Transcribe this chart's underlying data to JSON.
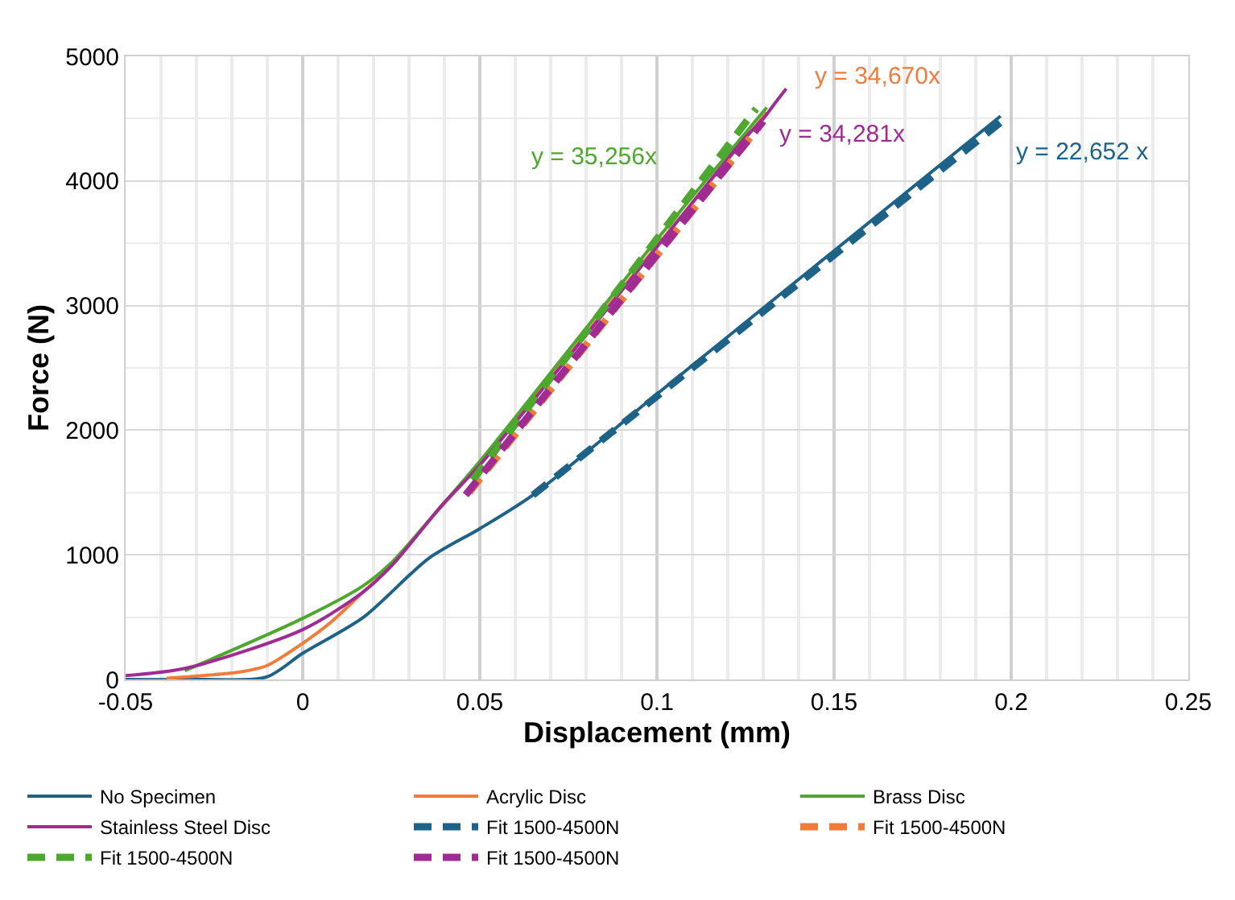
{
  "chart_data": {
    "type": "line",
    "xlabel": "Displacement (mm)",
    "ylabel": "Force (N)",
    "xlim": [
      -0.05,
      0.25
    ],
    "ylim": [
      0,
      5000
    ],
    "xticks": [
      -0.05,
      0,
      0.05,
      0.1,
      0.15,
      0.2,
      0.25
    ],
    "yticks": [
      0,
      1000,
      2000,
      3000,
      4000,
      5000
    ],
    "grid": true,
    "legend": "bottom",
    "marker": "none",
    "line_style": "solid",
    "series": [
      {
        "name": "No Specimen",
        "color": "#1f6287",
        "x": [
          -0.05,
          -0.03,
          -0.0102,
          0,
          0.0172,
          0.0355,
          0.05,
          0.065,
          0.1,
          0.15,
          0.197
        ],
        "values": [
          0,
          0,
          20,
          210,
          500,
          970,
          1210,
          1480,
          2290,
          3440,
          4520
        ]
      },
      {
        "name": "Acrylic Disc",
        "color": "#f07b3a",
        "x": [
          -0.0384,
          -0.0178,
          -0.0102,
          0,
          0.008,
          0.017,
          0.025,
          0.0355,
          0.05,
          0.1,
          0.131
        ],
        "values": [
          10,
          60,
          110,
          290,
          460,
          700,
          910,
          1270,
          1730,
          3480,
          4550
        ]
      },
      {
        "name": "Brass Disc",
        "color": "#4ea72e",
        "x": [
          -0.0333,
          0,
          0.017,
          0.0248,
          0.04,
          0.05,
          0.1,
          0.131
        ],
        "values": [
          70,
          490,
          750,
          930,
          1420,
          1750,
          3530,
          4590
        ]
      },
      {
        "name": "Stainless Steel Disc",
        "color": "#a02b93",
        "x": [
          -0.05,
          -0.033,
          0,
          0.017,
          0.025,
          0.04,
          0.05,
          0.1,
          0.125,
          0.13,
          0.134,
          0.1365
        ],
        "values": [
          30,
          90,
          400,
          700,
          910,
          1420,
          1720,
          3470,
          4350,
          4500,
          4650,
          4740
        ]
      },
      {
        "name": "Fit 1500-4500N",
        "color": "#1f6287",
        "line_style": "dashed",
        "x": [
          0.065,
          0.197
        ],
        "values": [
          1480,
          4470
        ]
      },
      {
        "name": "Fit 1500-4500N",
        "color": "#f07b3a",
        "line_style": "dashed",
        "x": [
          0.047,
          0.13
        ],
        "values": [
          1500,
          4480
        ]
      },
      {
        "name": "Fit 1500-4500N",
        "color": "#4ea72e",
        "line_style": "dashed",
        "x": [
          0.048,
          0.128
        ],
        "values": [
          1600,
          4580
        ]
      },
      {
        "name": "Fit 1500-4500N",
        "color": "#a02b93",
        "line_style": "dashed",
        "x": [
          0.046,
          0.13
        ],
        "values": [
          1480,
          4480
        ]
      }
    ],
    "annotations": [
      "y = 22,652 x",
      "y = 34,670x",
      "y = 35,256x",
      "y = 34,281x"
    ]
  }
}
